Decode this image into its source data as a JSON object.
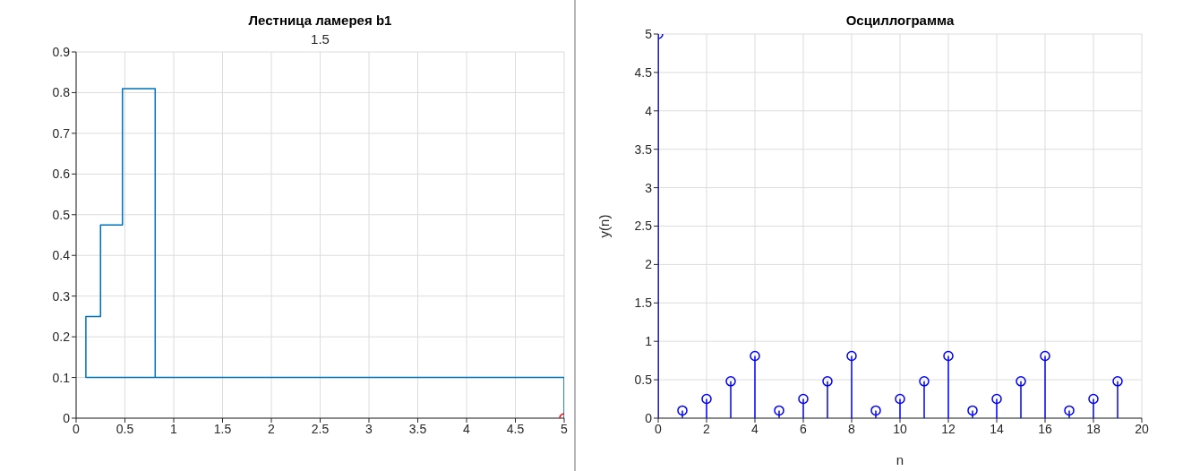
{
  "chart_data": [
    {
      "type": "line",
      "title": "Лестница ламерея b1",
      "subtitle": "1.5",
      "xlim": [
        0,
        5
      ],
      "ylim": [
        0,
        0.9
      ],
      "xticks": [
        0,
        0.5,
        1,
        1.5,
        2,
        2.5,
        3,
        3.5,
        4,
        4.5,
        5
      ],
      "yticks": [
        0,
        0.1,
        0.2,
        0.3,
        0.4,
        0.5,
        0.6,
        0.7,
        0.8,
        0.9
      ],
      "grid": true,
      "series": [
        {
          "color": "#0072bd",
          "x": [
            5,
            5,
            0.1,
            0.1,
            0.25,
            0.25,
            0.475,
            0.475,
            0.81,
            0.81
          ],
          "values": [
            0,
            0.1,
            0.1,
            0.25,
            0.25,
            0.475,
            0.475,
            0.81,
            0.81,
            0.1
          ],
          "marker": "none"
        },
        {
          "type": "scatter",
          "color": "#ff0000",
          "x": [
            5
          ],
          "values": [
            0
          ],
          "marker": "circle"
        }
      ]
    },
    {
      "type": "lollipop",
      "title": "Осциллограмма",
      "xlabel": "n",
      "ylabel": "y(n)",
      "xlim": [
        0,
        20
      ],
      "ylim": [
        0,
        5
      ],
      "xticks": [
        0,
        2,
        4,
        6,
        8,
        10,
        12,
        14,
        16,
        18,
        20
      ],
      "yticks": [
        0,
        0.5,
        1,
        1.5,
        2,
        2.5,
        3,
        3.5,
        4,
        4.5,
        5
      ],
      "grid": true,
      "marker": "circle",
      "series": [
        {
          "color": "#0000ff",
          "x": [
            0,
            1,
            2,
            3,
            4,
            5,
            6,
            7,
            8,
            9,
            10,
            11,
            12,
            13,
            14,
            15,
            16,
            17,
            18,
            19
          ],
          "values": [
            5,
            0.1,
            0.25,
            0.48,
            0.81,
            0.1,
            0.25,
            0.48,
            0.81,
            0.1,
            0.25,
            0.48,
            0.81,
            0.1,
            0.25,
            0.48,
            0.81,
            0.1,
            0.25,
            0.48
          ]
        }
      ]
    }
  ]
}
